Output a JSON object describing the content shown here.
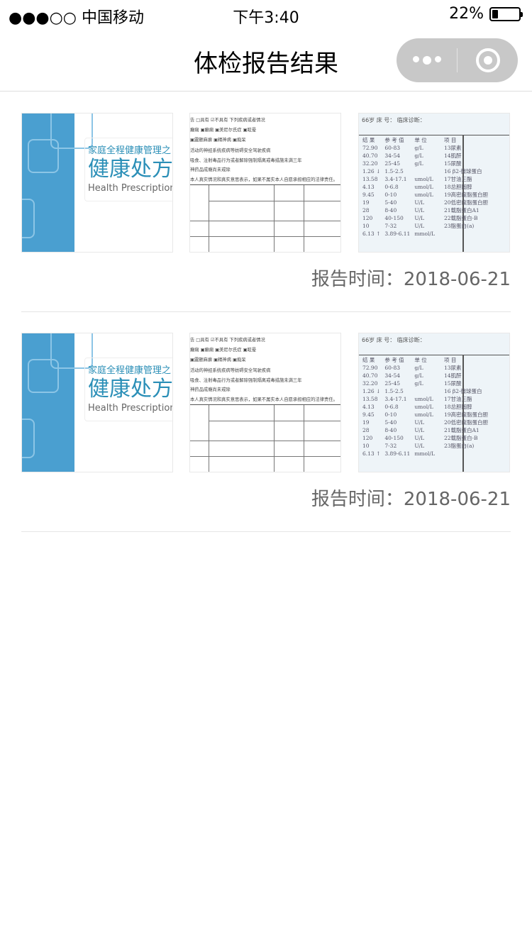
{
  "status_bar": {
    "carrier": "●●●○○ 中国移动",
    "time": "下午3:40",
    "battery": "22%",
    "battery_level": 0.22
  },
  "nav": {
    "title": "体检报告结果"
  },
  "thumb_text": {
    "subtitle": "家庭全程健康管理之",
    "title": "健康处方",
    "english": "Health Prescription",
    "form_lines": [
      "告 □具有  ☑不具有   下列疾病或者情况",
      "癫痫  ▣癫痫  ▣美尼尔氏症  ▣眩晕",
      "▣震颤麻痹  ▣精神病  ▣痴呆",
      "活动的神经系统疾病等妨碍安全驾驶疾病",
      "吸食、注射毒品行为或者解除强制隔离戒毒措施未满三年",
      "神药品成瘾尚未戒除",
      "本人真实情况和真实意思表示，如果不属实本人自愿承担相应的法律责任。"
    ],
    "lab_header": "66岁   床 号：   临床诊断：",
    "lab_columns": [
      "结 果",
      "参 考 值",
      "单 位",
      "项 目"
    ],
    "lab_rows": [
      [
        "72.90",
        "60-83",
        "g/L",
        "13尿素"
      ],
      [
        "40.70",
        "34-54",
        "g/L",
        "14肌酐"
      ],
      [
        "32.20",
        "25-45",
        "g/L",
        "15尿酸"
      ],
      [
        "1.26 ↓",
        "1.5-2.5",
        "",
        "16 β2-微球蛋白"
      ],
      [
        "13.58",
        "3.4-17.1",
        "umol/L",
        "17甘油三酯"
      ],
      [
        "4.13",
        "0-6.8",
        "umol/L",
        "18总胆固醇"
      ],
      [
        "9.45",
        "0-10",
        "umol/L",
        "19高密度脂蛋白胆"
      ],
      [
        "19",
        "5-40",
        "U/L",
        "20低密度脂蛋白胆"
      ],
      [
        "28",
        "8-40",
        "U/L",
        "21载脂蛋白A1"
      ],
      [
        "120",
        "40-150",
        "U/L",
        "22载脂蛋白-B"
      ],
      [
        "10",
        "7-32",
        "U/L",
        "23脂蛋白(a)"
      ],
      [
        "6.13 ↑",
        "3.89-6.11",
        "mmol/L",
        ""
      ]
    ]
  },
  "reports": [
    {
      "time": "报告时间：2018-06-21"
    },
    {
      "time": "报告时间：2018-06-21"
    }
  ]
}
